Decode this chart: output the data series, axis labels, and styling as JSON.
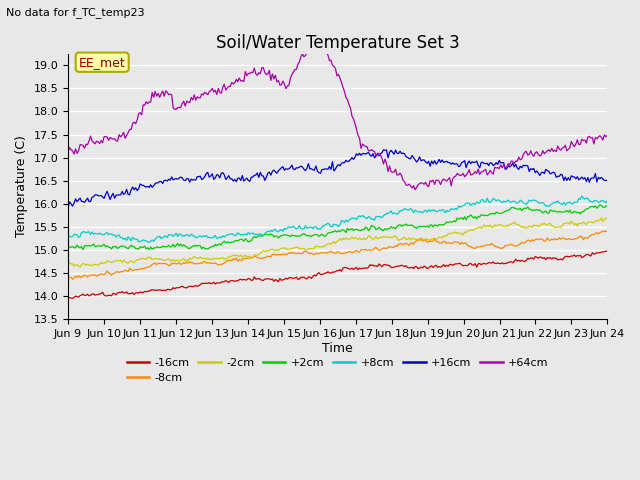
{
  "title": "Soil/Water Temperature Set 3",
  "subtitle": "No data for f_TC_temp23",
  "xlabel": "Time",
  "ylabel": "Temperature (C)",
  "ylim": [
    13.5,
    19.25
  ],
  "xlim": [
    0,
    359
  ],
  "x_tick_labels": [
    "Jun 9",
    "Jun 10",
    "Jun 11",
    "Jun 12",
    "Jun 13",
    "Jun 14",
    "Jun 15",
    "Jun 16",
    "Jun 17",
    "Jun 18",
    "Jun 19",
    "Jun 20",
    "Jun 21",
    "Jun 22",
    "Jun 23",
    "Jun 24"
  ],
  "legend_labels": [
    "-16cm",
    "-8cm",
    "-2cm",
    "+2cm",
    "+8cm",
    "+16cm",
    "+64cm"
  ],
  "legend_colors": [
    "#cc0000",
    "#ff8800",
    "#cccc00",
    "#00cc00",
    "#00cccc",
    "#0000cc",
    "#aa00aa"
  ],
  "background_color": "#e8e8e8",
  "grid_color": "#ffffff",
  "annotation_text": "EE_met",
  "n_points": 360,
  "title_fontsize": 12,
  "label_fontsize": 9,
  "tick_fontsize": 8,
  "y_ticks": [
    13.5,
    14.0,
    14.5,
    15.0,
    15.5,
    16.0,
    16.5,
    17.0,
    17.5,
    18.0,
    18.5,
    19.0
  ]
}
